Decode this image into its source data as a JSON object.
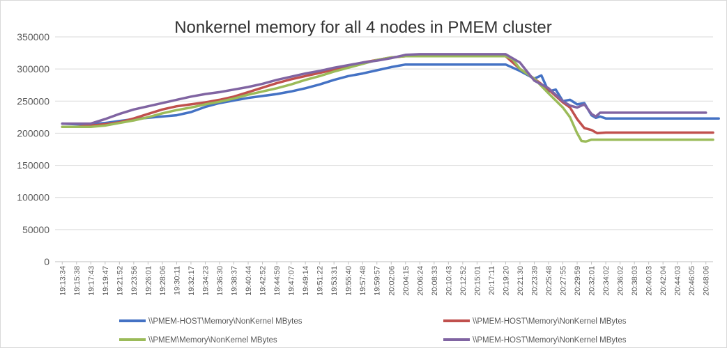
{
  "chart_data": {
    "type": "line",
    "title": "Nonkernel memory for all 4 nodes in PMEM cluster",
    "xlabel": "",
    "ylabel": "",
    "ylim": [
      0,
      350000
    ],
    "yticks": [
      0,
      50000,
      100000,
      150000,
      200000,
      250000,
      300000,
      350000
    ],
    "xtick_labels": [
      "19:13:34",
      "19:15:38",
      "19:17:43",
      "19:19:47",
      "19:21:52",
      "19:23:56",
      "19:26:01",
      "19:28:06",
      "19:30:11",
      "19:32:17",
      "19:34:23",
      "19:36:30",
      "19:38:37",
      "19:40:44",
      "19:42:52",
      "19:44:59",
      "19:47:07",
      "19:49:14",
      "19:51:22",
      "19:53:31",
      "19:55:40",
      "19:57:48",
      "19:59:57",
      "20:02:06",
      "20:04:15",
      "20:06:24",
      "20:08:33",
      "20:10:43",
      "20:12:52",
      "20:15:01",
      "20:17:11",
      "20:19:20",
      "20:21:30",
      "20:23:39",
      "20:25:48",
      "20:27:55",
      "20:29:59",
      "20:32:01",
      "20:34:02",
      "20:36:02",
      "20:38:03",
      "20:40:03",
      "20:42:04",
      "20:44:03",
      "20:46:05",
      "20:48:06"
    ],
    "grid": true,
    "legend_position": "bottom",
    "series": [
      {
        "name": "\\\\PMEM-HOST\\Memory\\NonKernel MBytes",
        "color": "#4472C4",
        "x": [
          0,
          1,
          2,
          3,
          4,
          5,
          6,
          7,
          8,
          9,
          10,
          11,
          12,
          13,
          14,
          15,
          16,
          17,
          18,
          19,
          20,
          21,
          22,
          23,
          24,
          25,
          26,
          27,
          28,
          29,
          30,
          31,
          32,
          33,
          33.5,
          34,
          34.5,
          35,
          35.5,
          36,
          36.5,
          37,
          37.3,
          37.6,
          38,
          39,
          40,
          41,
          42,
          43,
          44,
          45,
          45.9
        ],
        "values": [
          215000,
          214000,
          214000,
          216000,
          219000,
          222000,
          224000,
          226000,
          228000,
          233000,
          241000,
          247000,
          251000,
          255000,
          258000,
          261000,
          265000,
          270000,
          276000,
          283000,
          289000,
          293000,
          298000,
          303000,
          307000,
          307000,
          307000,
          307000,
          307000,
          307000,
          307000,
          307000,
          297000,
          285000,
          290000,
          265000,
          268000,
          250000,
          252000,
          245000,
          247000,
          228000,
          224000,
          226000,
          223000,
          223000,
          223000,
          223000,
          223000,
          223000,
          223000,
          223000,
          223000
        ]
      },
      {
        "name": "\\\\PMEM-HOST\\Memory\\NonKernel MBytes",
        "color": "#C0504D",
        "x": [
          0,
          1,
          2,
          3,
          4,
          5,
          6,
          7,
          8,
          9,
          10,
          11,
          12,
          13,
          14,
          15,
          16,
          17,
          18,
          19,
          20,
          21,
          22,
          23,
          24,
          25,
          26,
          27,
          28,
          29,
          30,
          31,
          32,
          33,
          34,
          35,
          35.5,
          36,
          36.5,
          37,
          37.4,
          38,
          39,
          40,
          41,
          42,
          43,
          44,
          45,
          45.5
        ],
        "values": [
          210000,
          210000,
          212000,
          214000,
          217000,
          223000,
          230000,
          237000,
          242000,
          245000,
          248000,
          252000,
          257000,
          264000,
          271000,
          278000,
          284000,
          289000,
          294000,
          299000,
          305000,
          310000,
          314000,
          318000,
          320000,
          320000,
          320000,
          320000,
          320000,
          320000,
          320000,
          320000,
          300000,
          285000,
          268000,
          248000,
          240000,
          222000,
          208000,
          205000,
          200000,
          201000,
          201000,
          201000,
          201000,
          201000,
          201000,
          201000,
          201000,
          201000
        ]
      },
      {
        "name": "\\\\PMEM\\Memory\\NonKernel MBytes",
        "color": "#9BBB59",
        "x": [
          0,
          1,
          2,
          3,
          4,
          5,
          6,
          7,
          8,
          9,
          10,
          11,
          12,
          13,
          14,
          15,
          16,
          17,
          18,
          19,
          20,
          21,
          22,
          23,
          24,
          25,
          26,
          27,
          28,
          29,
          30,
          31,
          31.5,
          32,
          33,
          34,
          35,
          35.5,
          36,
          36.3,
          36.6,
          37,
          38,
          39,
          40,
          41,
          42,
          43,
          44,
          45,
          45.5
        ],
        "values": [
          210000,
          210000,
          210000,
          212000,
          216000,
          220000,
          225000,
          231000,
          236000,
          240000,
          245000,
          249000,
          254000,
          260000,
          265000,
          270000,
          276000,
          283000,
          289000,
          296000,
          302000,
          308000,
          314000,
          318000,
          320000,
          320000,
          320000,
          320000,
          320000,
          320000,
          320000,
          320000,
          315000,
          300000,
          285000,
          262000,
          240000,
          225000,
          200000,
          188000,
          187000,
          190000,
          190000,
          190000,
          190000,
          190000,
          190000,
          190000,
          190000,
          190000,
          190000
        ]
      },
      {
        "name": "\\\\PMEM-HOST\\Memory\\NonKernel MBytes",
        "color": "#8064A2",
        "x": [
          0,
          1,
          2,
          3,
          4,
          5,
          6,
          7,
          8,
          9,
          10,
          11,
          12,
          13,
          14,
          15,
          16,
          17,
          18,
          19,
          20,
          21,
          22,
          23,
          24,
          25,
          26,
          27,
          28,
          29,
          30,
          31,
          32,
          33,
          34,
          35,
          35.5,
          36,
          36.5,
          37,
          37.3,
          37.6,
          38,
          39,
          40,
          41,
          42,
          43,
          44,
          45
        ],
        "values": [
          215000,
          215000,
          215000,
          222000,
          230000,
          237000,
          242000,
          247000,
          252000,
          257000,
          261000,
          264000,
          268000,
          272000,
          277000,
          283000,
          288000,
          293000,
          297000,
          302000,
          306000,
          310000,
          313000,
          317000,
          322000,
          323000,
          323000,
          323000,
          323000,
          323000,
          323000,
          323000,
          310000,
          282000,
          270000,
          250000,
          243000,
          240000,
          245000,
          230000,
          226000,
          232000,
          232000,
          232000,
          232000,
          232000,
          232000,
          232000,
          232000,
          232000
        ]
      }
    ]
  }
}
